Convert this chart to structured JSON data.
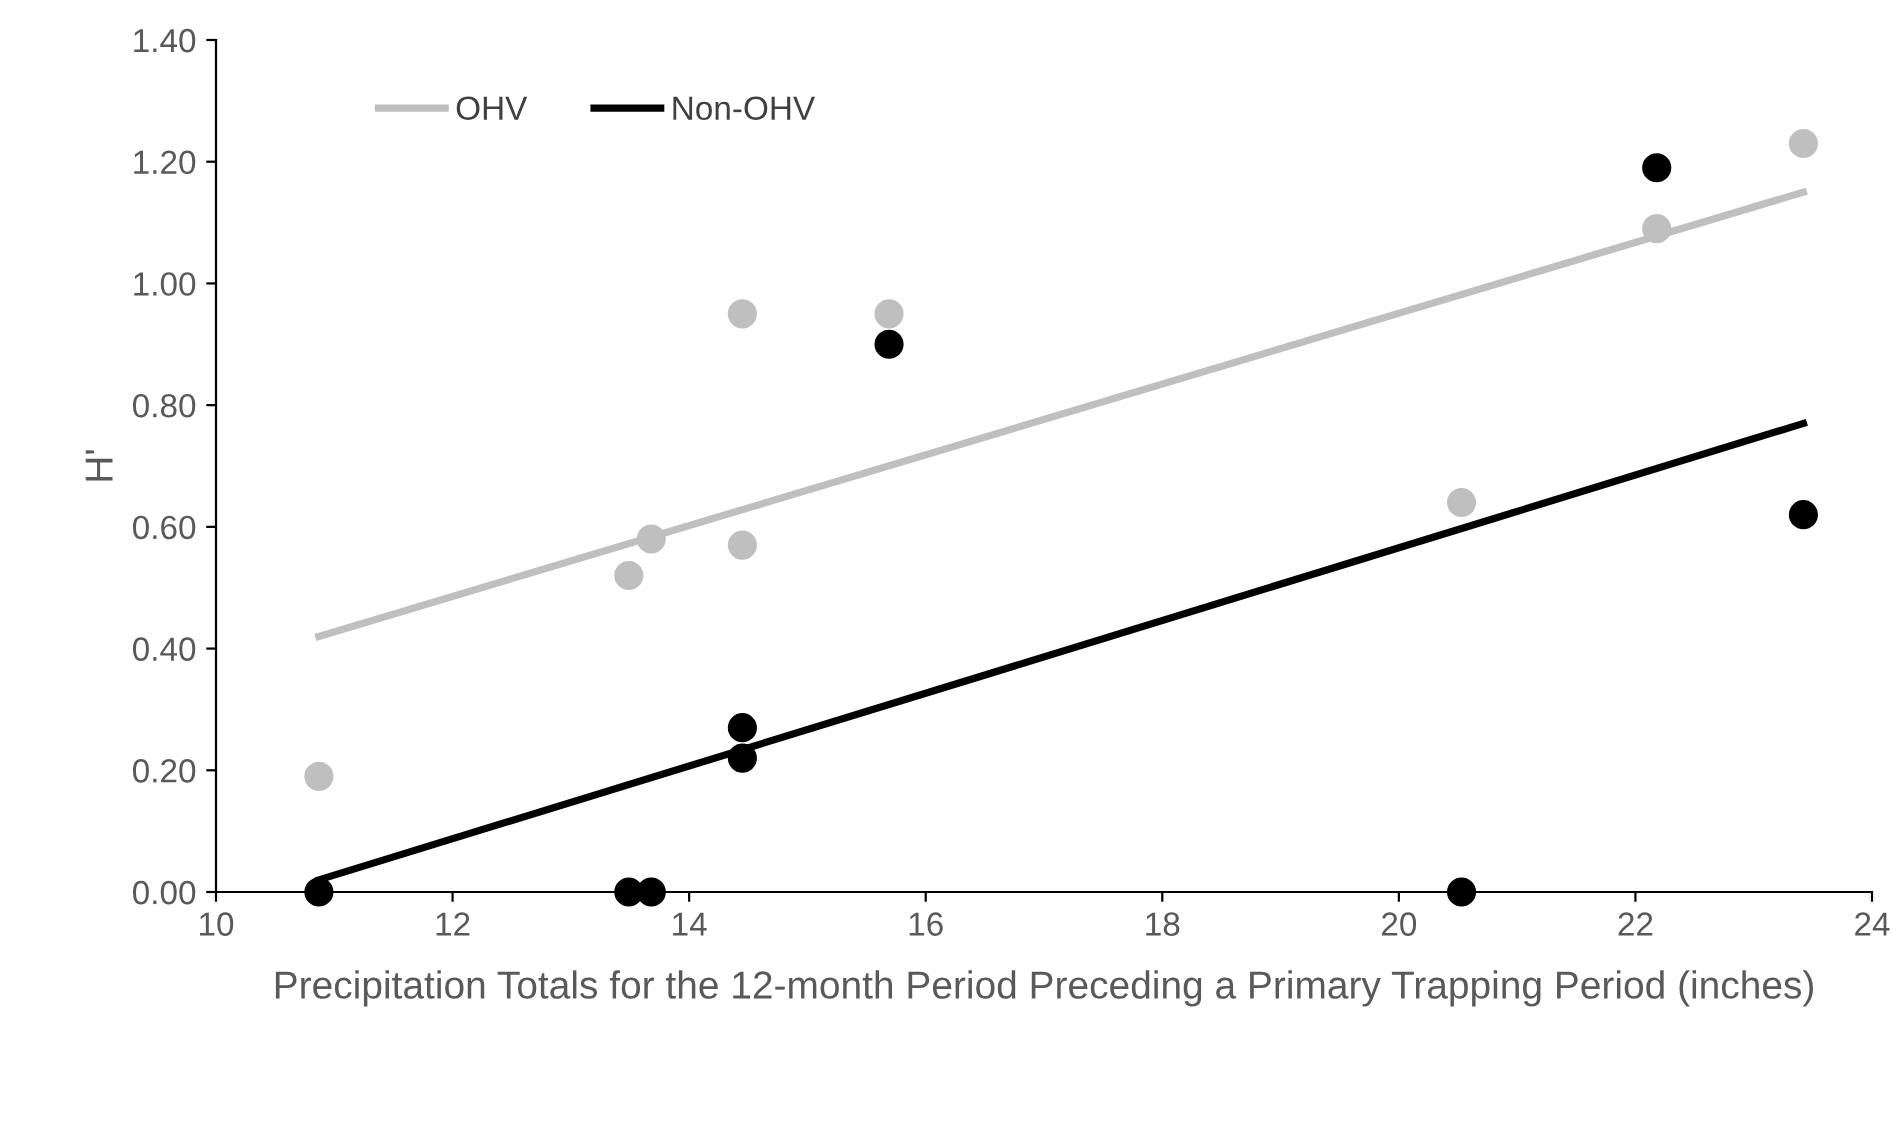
{
  "chart_data": {
    "type": "scatter",
    "xlabel": "Precipitation Totals for the 12-month Period Preceding a Primary Trapping Period (inches)",
    "ylabel": "H'",
    "series": [
      {
        "color": "#bfbfbf",
        "x": [
          10.87,
          13.49,
          13.68,
          14.45,
          14.45,
          15.69,
          20.53,
          22.18,
          23.42
        ],
        "values": [
          0.19,
          0.52,
          0.58,
          0.57,
          0.95,
          0.95,
          0.64,
          1.09,
          1.23
        ]
      },
      {
        "color": "#000000",
        "x": [
          10.87,
          13.49,
          13.68,
          14.45,
          14.45,
          15.69,
          20.53,
          22.18,
          23.42
        ],
        "values": [
          0.0,
          0.0,
          0.0,
          0.22,
          0.27,
          0.9,
          0.0,
          1.19,
          0.62
        ]
      },
      {
        "type": "line",
        "marker": "none",
        "name": "OHV",
        "color": "#bfbfbf",
        "x": [
          10.87,
          23.42
        ],
        "values": [
          0.42,
          1.15
        ]
      },
      {
        "type": "line",
        "marker": "none",
        "name": "Non-OHV",
        "color": "#000000",
        "x": [
          10.87,
          23.42
        ],
        "values": [
          0.02,
          0.77
        ]
      }
    ],
    "xlim": [
      10,
      24
    ],
    "xticks": [
      10,
      12,
      14,
      16,
      18,
      20,
      22,
      24
    ],
    "ylim": [
      0,
      1.4
    ],
    "yticks": [
      {
        "value": 0,
        "label": "0.00"
      },
      {
        "value": 0.2,
        "label": "0.20"
      },
      {
        "value": 0.4,
        "label": "0.40"
      },
      {
        "value": 0.6,
        "label": "0.60"
      },
      {
        "value": 0.8,
        "label": "0.80"
      },
      {
        "value": 1.0,
        "label": "1.00"
      },
      {
        "value": 1.2,
        "label": "1.20"
      },
      {
        "value": 1.4,
        "label": "1.40"
      }
    ],
    "marker": "circle",
    "legend": "top left",
    "grid": false
  }
}
